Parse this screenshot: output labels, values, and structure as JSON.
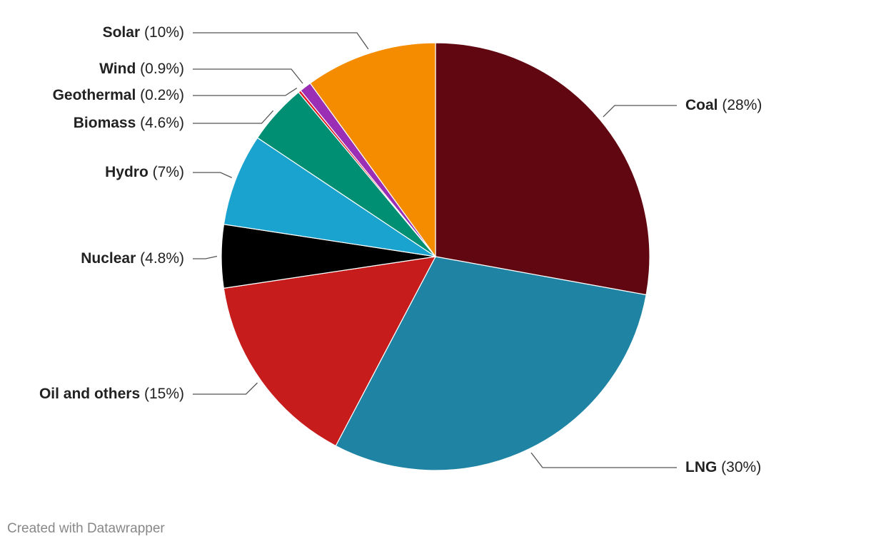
{
  "chart_data": {
    "type": "pie",
    "categories": [
      "Coal",
      "LNG",
      "Oil and others",
      "Nuclear",
      "Hydro",
      "Biomass",
      "Geothermal",
      "Wind",
      "Solar"
    ],
    "values": [
      28,
      30,
      15,
      4.8,
      7,
      4.6,
      0.2,
      0.9,
      10
    ],
    "value_labels": [
      "(28%)",
      "(30%)",
      "(15%)",
      "(4.8%)",
      "(7%)",
      "(4.6%)",
      "(0.2%)",
      "(0.9%)",
      "(10%)"
    ],
    "colors": [
      "#600711",
      "#1f83a3",
      "#c71c1c",
      "#000000",
      "#1ba3cf",
      "#008f73",
      "#e0141f",
      "#9a2fb5",
      "#f58c00"
    ]
  },
  "footer": "Created with Datawrapper"
}
